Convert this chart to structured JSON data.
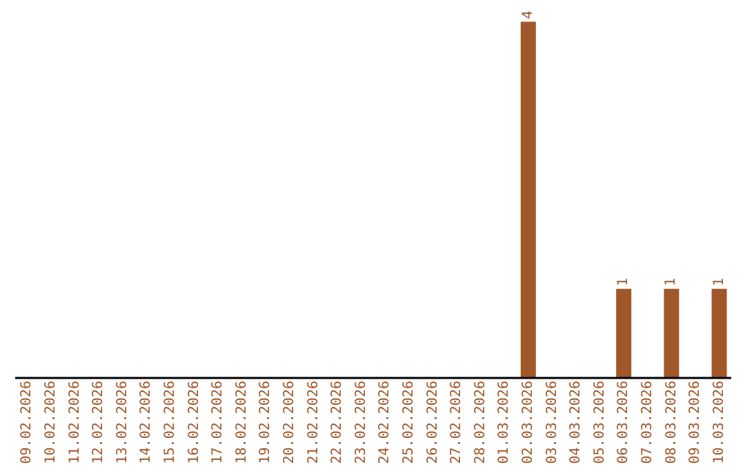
{
  "chart_data": {
    "type": "bar",
    "categories": [
      "09.02.2026",
      "10.02.2026",
      "11.02.2026",
      "12.02.2026",
      "13.02.2026",
      "14.02.2026",
      "15.02.2026",
      "16.02.2026",
      "17.02.2026",
      "18.02.2026",
      "19.02.2026",
      "20.02.2026",
      "21.02.2026",
      "22.02.2026",
      "23.02.2026",
      "24.02.2026",
      "25.02.2026",
      "26.02.2026",
      "27.02.2026",
      "28.02.2026",
      "01.03.2026",
      "02.03.2026",
      "03.03.2026",
      "04.03.2026",
      "05.03.2026",
      "06.03.2026",
      "07.03.2026",
      "08.03.2026",
      "09.03.2026",
      "10.03.2026"
    ],
    "values": [
      null,
      null,
      null,
      null,
      null,
      null,
      null,
      null,
      null,
      null,
      null,
      null,
      null,
      null,
      null,
      null,
      null,
      null,
      null,
      null,
      null,
      4,
      null,
      null,
      null,
      1,
      null,
      1,
      null,
      1
    ],
    "data_labels": true,
    "color": "#a0582a",
    "tick_labels": "x"
  }
}
